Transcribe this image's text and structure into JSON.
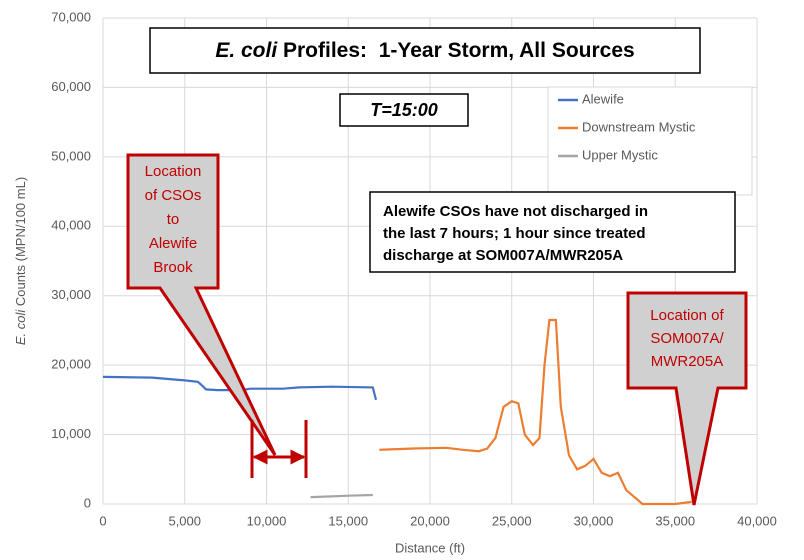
{
  "chart_data": {
    "type": "line",
    "title": [
      "E. coli",
      " Profiles:  1-Year Storm, All Sources"
    ],
    "subtitle": "T=15:00",
    "xlabel": "Distance (ft)",
    "ylabel": [
      "E. coli",
      " Counts (MPN/100 mL)"
    ],
    "xlim": [
      0,
      40000
    ],
    "ylim": [
      0,
      70000
    ],
    "xticks": [
      0,
      {
        "value": 5000,
        "label": "5,000"
      },
      {
        "value": 10000,
        "label": "10,000"
      },
      {
        "value": 15000,
        "label": "15,000"
      },
      {
        "value": 20000,
        "label": "20,000"
      },
      {
        "value": 25000,
        "label": "25,000"
      },
      {
        "value": 30000,
        "label": "30,000"
      },
      {
        "value": 35000,
        "label": "35,000"
      },
      {
        "value": 40000,
        "label": "40,000"
      }
    ],
    "yticks": [
      0,
      {
        "value": 10000,
        "label": "10,000"
      },
      {
        "value": 20000,
        "label": "20,000"
      },
      {
        "value": 30000,
        "label": "30,000"
      },
      {
        "value": 40000,
        "label": "40,000"
      },
      {
        "value": 50000,
        "label": "50,000"
      },
      {
        "value": 60000,
        "label": "60,000"
      },
      {
        "value": 70000,
        "label": "70,000"
      }
    ],
    "grid": true,
    "legend": "upper right",
    "series": [
      {
        "name": "Alewife",
        "color": "#4472c4",
        "x": [
          0,
          3000,
          5000,
          5800,
          6000,
          6300,
          7000,
          8500,
          9000,
          11000,
          12000,
          14000,
          16500,
          16700
        ],
        "values": [
          18300,
          18200,
          17800,
          17600,
          17200,
          16500,
          16400,
          16400,
          16600,
          16600,
          16800,
          16900,
          16800,
          15000
        ]
      },
      {
        "name": "Downstream Mystic",
        "color": "#ed7d31",
        "x": [
          16900,
          19000,
          21000,
          22000,
          23000,
          23500,
          24000,
          24500,
          25000,
          25400,
          25800,
          26300,
          26700,
          27000,
          27300,
          27700,
          28000,
          28500,
          29000,
          29500,
          30000,
          30500,
          31000,
          31500,
          32000,
          32500,
          33000,
          35000,
          36000
        ],
        "values": [
          7800,
          8000,
          8100,
          7800,
          7600,
          8000,
          9500,
          14000,
          14800,
          14500,
          10000,
          8500,
          9500,
          20000,
          26500,
          26500,
          14000,
          7000,
          5000,
          5500,
          6500,
          4500,
          4000,
          4500,
          2000,
          1000,
          0,
          0,
          300
        ]
      },
      {
        "name": "Upper Mystic",
        "color": "#a5a5a5",
        "x": [
          12700,
          14000,
          15000,
          16500
        ],
        "values": [
          1000,
          1100,
          1200,
          1300
        ]
      }
    ],
    "annotations": [
      {
        "text": [
          "Location",
          "of CSOs",
          "to",
          "Alewife",
          "Brook"
        ]
      },
      {
        "text": [
          "Location of",
          "SOM007A/",
          "MWR205A"
        ]
      },
      {
        "text": [
          "Alewife CSOs have not discharged in",
          "the last 7 hours; 1 hour since treated",
          "discharge at SOM007A/MWR205A"
        ]
      }
    ]
  }
}
